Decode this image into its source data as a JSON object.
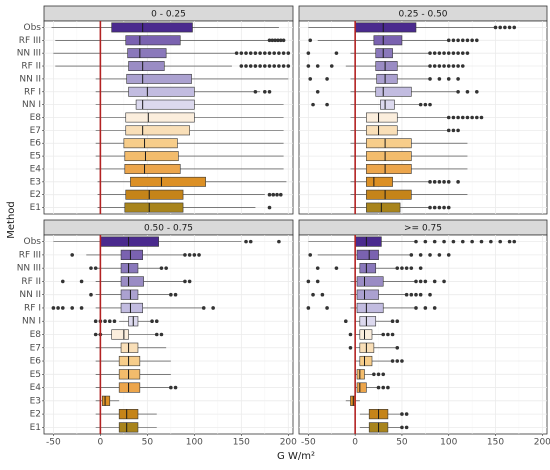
{
  "chart_data": {
    "type": "boxplot",
    "xlabel": "G W/m²",
    "ylabel": "Method",
    "xlim": [
      -60,
      205
    ],
    "x_ticks": [
      -50,
      0,
      50,
      100,
      150,
      200
    ],
    "reference_line_x": 0,
    "categories": [
      "Obs",
      "RF III",
      "NN III",
      "RF II",
      "NN II",
      "RF I",
      "NN I",
      "E8",
      "E7",
      "E6",
      "E5",
      "E4",
      "E3",
      "E2",
      "E1"
    ],
    "colors": {
      "Obs": "#4a2a8e",
      "RF III": "#7a62b0",
      "NN III": "#8a78bb",
      "RF II": "#9a8cc4",
      "NN II": "#aba1d0",
      "RF I": "#c2bce0",
      "NN I": "#dcd9ee",
      "E8": "#fbeedd",
      "E7": "#f9dfb8",
      "E6": "#f7cd8a",
      "E5": "#f3bc6c",
      "E4": "#eca54b",
      "E3": "#dc9025",
      "E2": "#c58419",
      "E1": "#a8841c"
    },
    "panels": [
      {
        "title": "0 - 0.25",
        "boxes": [
          {
            "q1": 12,
            "median": 45,
            "q3": 98,
            "lo": -52,
            "hi": 190
          },
          {
            "q1": 27,
            "median": 42,
            "q3": 85,
            "lo": -48,
            "hi": 180
          },
          {
            "q1": 29,
            "median": 42,
            "q3": 70,
            "lo": -50,
            "hi": 145
          },
          {
            "q1": 30,
            "median": 45,
            "q3": 68,
            "lo": -48,
            "hi": 140
          },
          {
            "q1": 28,
            "median": 45,
            "q3": 97,
            "lo": -5,
            "hi": 200
          },
          {
            "q1": 30,
            "median": 50,
            "q3": 100,
            "lo": -5,
            "hi": 170
          },
          {
            "q1": 38,
            "median": 45,
            "q3": 100,
            "lo": -5,
            "hi": 195
          },
          {
            "q1": 27,
            "median": 51,
            "q3": 100,
            "lo": -5,
            "hi": 195
          },
          {
            "q1": 27,
            "median": 45,
            "q3": 95,
            "lo": -5,
            "hi": 195
          },
          {
            "q1": 25,
            "median": 47,
            "q3": 82,
            "lo": -5,
            "hi": 195
          },
          {
            "q1": 26,
            "median": 48,
            "q3": 83,
            "lo": -5,
            "hi": 195
          },
          {
            "q1": 26,
            "median": 47,
            "q3": 85,
            "lo": -5,
            "hi": 195
          },
          {
            "q1": 32,
            "median": 65,
            "q3": 112,
            "lo": -3,
            "hi": 198
          },
          {
            "q1": 27,
            "median": 52,
            "q3": 88,
            "lo": -3,
            "hi": 175
          },
          {
            "q1": 26,
            "median": 52,
            "q3": 88,
            "lo": -3,
            "hi": 165
          }
        ],
        "outliers": [
          [],
          [
            180,
            183,
            186,
            189,
            192,
            195
          ],
          [
            145,
            150,
            155,
            160,
            165,
            170,
            175,
            180,
            185,
            190,
            195,
            200
          ],
          [
            150,
            155,
            160,
            165,
            170,
            175,
            180,
            185,
            190,
            195,
            200
          ],
          [],
          [
            165,
            175,
            180
          ],
          [],
          [],
          [],
          [],
          [],
          [],
          [],
          [
            180,
            184,
            188,
            192
          ],
          [
            180
          ]
        ]
      },
      {
        "title": "0.25 - 0.50",
        "boxes": [
          {
            "q1": 0,
            "median": 30,
            "q3": 65,
            "lo": -50,
            "hi": 150
          },
          {
            "q1": 20,
            "median": 30,
            "q3": 50,
            "lo": -40,
            "hi": 100
          },
          {
            "q1": 22,
            "median": 30,
            "q3": 40,
            "lo": -5,
            "hi": 80
          },
          {
            "q1": 22,
            "median": 32,
            "q3": 45,
            "lo": -10,
            "hi": 80
          },
          {
            "q1": 23,
            "median": 32,
            "q3": 45,
            "lo": -5,
            "hi": 80
          },
          {
            "q1": 22,
            "median": 30,
            "q3": 60,
            "lo": -5,
            "hi": 110
          },
          {
            "q1": 27,
            "median": 32,
            "q3": 42,
            "lo": -5,
            "hi": 70
          },
          {
            "q1": 12,
            "median": 25,
            "q3": 45,
            "lo": -5,
            "hi": 100
          },
          {
            "q1": 12,
            "median": 25,
            "q3": 45,
            "lo": -5,
            "hi": 100
          },
          {
            "q1": 12,
            "median": 32,
            "q3": 60,
            "lo": -5,
            "hi": 120
          },
          {
            "q1": 12,
            "median": 32,
            "q3": 60,
            "lo": -5,
            "hi": 120
          },
          {
            "q1": 12,
            "median": 32,
            "q3": 60,
            "lo": -5,
            "hi": 120
          },
          {
            "q1": 12,
            "median": 20,
            "q3": 40,
            "lo": -5,
            "hi": 80
          },
          {
            "q1": 12,
            "median": 32,
            "q3": 60,
            "lo": -5,
            "hi": 120
          },
          {
            "q1": 12,
            "median": 28,
            "q3": 48,
            "lo": -5,
            "hi": 80
          }
        ],
        "outliers": [
          [
            150,
            155,
            160,
            165,
            170
          ],
          [
            -48,
            100,
            105,
            110,
            115,
            120,
            125,
            130
          ],
          [
            -50,
            -20,
            80,
            85,
            90,
            95,
            100,
            105,
            110,
            115,
            120
          ],
          [
            -50,
            -40,
            -25,
            80,
            85,
            90,
            95,
            100,
            105,
            110,
            115
          ],
          [
            -48,
            -30,
            80,
            90,
            100,
            110
          ],
          [
            -40,
            110,
            120,
            130
          ],
          [
            -45,
            -30,
            70,
            75,
            80
          ],
          [
            100,
            105,
            110,
            115,
            120,
            125,
            130,
            135
          ],
          [
            100,
            105,
            110
          ],
          [],
          [],
          [],
          [
            80,
            85,
            90,
            95,
            100,
            110
          ],
          [],
          [
            80,
            85,
            90,
            95,
            100
          ]
        ]
      },
      {
        "title": "0.50 - 0.75",
        "boxes": [
          {
            "q1": 0,
            "median": 30,
            "q3": 62,
            "lo": -50,
            "hi": 150
          },
          {
            "q1": 22,
            "median": 32,
            "q3": 45,
            "lo": -15,
            "hi": 90
          },
          {
            "q1": 22,
            "median": 30,
            "q3": 40,
            "lo": -5,
            "hi": 65
          },
          {
            "q1": 22,
            "median": 30,
            "q3": 46,
            "lo": -5,
            "hi": 90
          },
          {
            "q1": 22,
            "median": 32,
            "q3": 40,
            "lo": -5,
            "hi": 75
          },
          {
            "q1": 22,
            "median": 32,
            "q3": 45,
            "lo": -5,
            "hi": 110
          },
          {
            "q1": 30,
            "median": 35,
            "q3": 40,
            "lo": 20,
            "hi": 55
          },
          {
            "q1": 12,
            "median": 25,
            "q3": 30,
            "lo": -5,
            "hi": 60
          },
          {
            "q1": 22,
            "median": 30,
            "q3": 40,
            "lo": -5,
            "hi": 70
          },
          {
            "q1": 20,
            "median": 30,
            "q3": 42,
            "lo": -5,
            "hi": 75
          },
          {
            "q1": 20,
            "median": 30,
            "q3": 42,
            "lo": -5,
            "hi": 75
          },
          {
            "q1": 20,
            "median": 30,
            "q3": 42,
            "lo": -5,
            "hi": 75
          },
          {
            "q1": 2,
            "median": 5,
            "q3": 10,
            "lo": -5,
            "hi": 20
          },
          {
            "q1": 20,
            "median": 28,
            "q3": 40,
            "lo": -5,
            "hi": 60
          },
          {
            "q1": 20,
            "median": 28,
            "q3": 40,
            "lo": -5,
            "hi": 60
          }
        ],
        "outliers": [
          [
            155,
            160,
            190
          ],
          [
            -30,
            90,
            95,
            100,
            105
          ],
          [
            -10,
            -5,
            65,
            70
          ],
          [
            -40,
            -20,
            90,
            95
          ],
          [
            -10,
            75,
            80
          ],
          [
            -50,
            -45,
            -40,
            -30,
            -20,
            110,
            120
          ],
          [
            -5,
            0,
            5,
            10,
            15,
            55,
            60
          ],
          [
            -5,
            0,
            60,
            65
          ],
          [],
          [],
          [],
          [
            75,
            80
          ],
          [],
          [],
          []
        ]
      },
      {
        "title": ">= 0.75",
        "boxes": [
          {
            "q1": 0,
            "median": 12,
            "q3": 28,
            "lo": -50,
            "hi": 65
          },
          {
            "q1": 2,
            "median": 15,
            "q3": 25,
            "lo": -40,
            "hi": 60
          },
          {
            "q1": 5,
            "median": 12,
            "q3": 22,
            "lo": -5,
            "hi": 45
          },
          {
            "q1": 2,
            "median": 10,
            "q3": 30,
            "lo": -5,
            "hi": 65
          },
          {
            "q1": 2,
            "median": 10,
            "q3": 25,
            "lo": -5,
            "hi": 55
          },
          {
            "q1": 2,
            "median": 12,
            "q3": 30,
            "lo": -5,
            "hi": 65
          },
          {
            "q1": 5,
            "median": 12,
            "q3": 22,
            "lo": 0,
            "hi": 40
          },
          {
            "q1": 5,
            "median": 10,
            "q3": 18,
            "lo": 0,
            "hi": 30
          },
          {
            "q1": 5,
            "median": 12,
            "q3": 20,
            "lo": 0,
            "hi": 45
          },
          {
            "q1": 5,
            "median": 10,
            "q3": 18,
            "lo": 0,
            "hi": 40
          },
          {
            "q1": 2,
            "median": 5,
            "q3": 10,
            "lo": 0,
            "hi": 20
          },
          {
            "q1": 2,
            "median": 5,
            "q3": 12,
            "lo": 0,
            "hi": 25
          },
          {
            "q1": -5,
            "median": -2,
            "q3": 0,
            "lo": -10,
            "hi": 5
          },
          {
            "q1": 15,
            "median": 25,
            "q3": 35,
            "lo": 5,
            "hi": 50
          },
          {
            "q1": 15,
            "median": 25,
            "q3": 35,
            "lo": 5,
            "hi": 50
          }
        ],
        "outliers": [
          [
            65,
            75,
            85,
            95,
            105,
            115,
            125,
            135,
            145,
            155,
            165,
            170
          ],
          [
            -48,
            60,
            70,
            80,
            90,
            100
          ],
          [
            -40,
            -20,
            45,
            50,
            55,
            60,
            70
          ],
          [
            -50,
            -40,
            65,
            70,
            75,
            85,
            95
          ],
          [
            -45,
            -35,
            55,
            60,
            65,
            70,
            80
          ],
          [
            -50,
            -30,
            65,
            75,
            85
          ],
          [
            -10,
            40,
            45
          ],
          [
            -5,
            30,
            35,
            40
          ],
          [
            -5,
            45
          ],
          [
            40,
            45,
            50
          ],
          [
            20,
            25,
            30
          ],
          [
            25,
            30,
            35
          ],
          [],
          [
            50,
            55
          ],
          [
            50,
            55
          ]
        ]
      }
    ]
  }
}
